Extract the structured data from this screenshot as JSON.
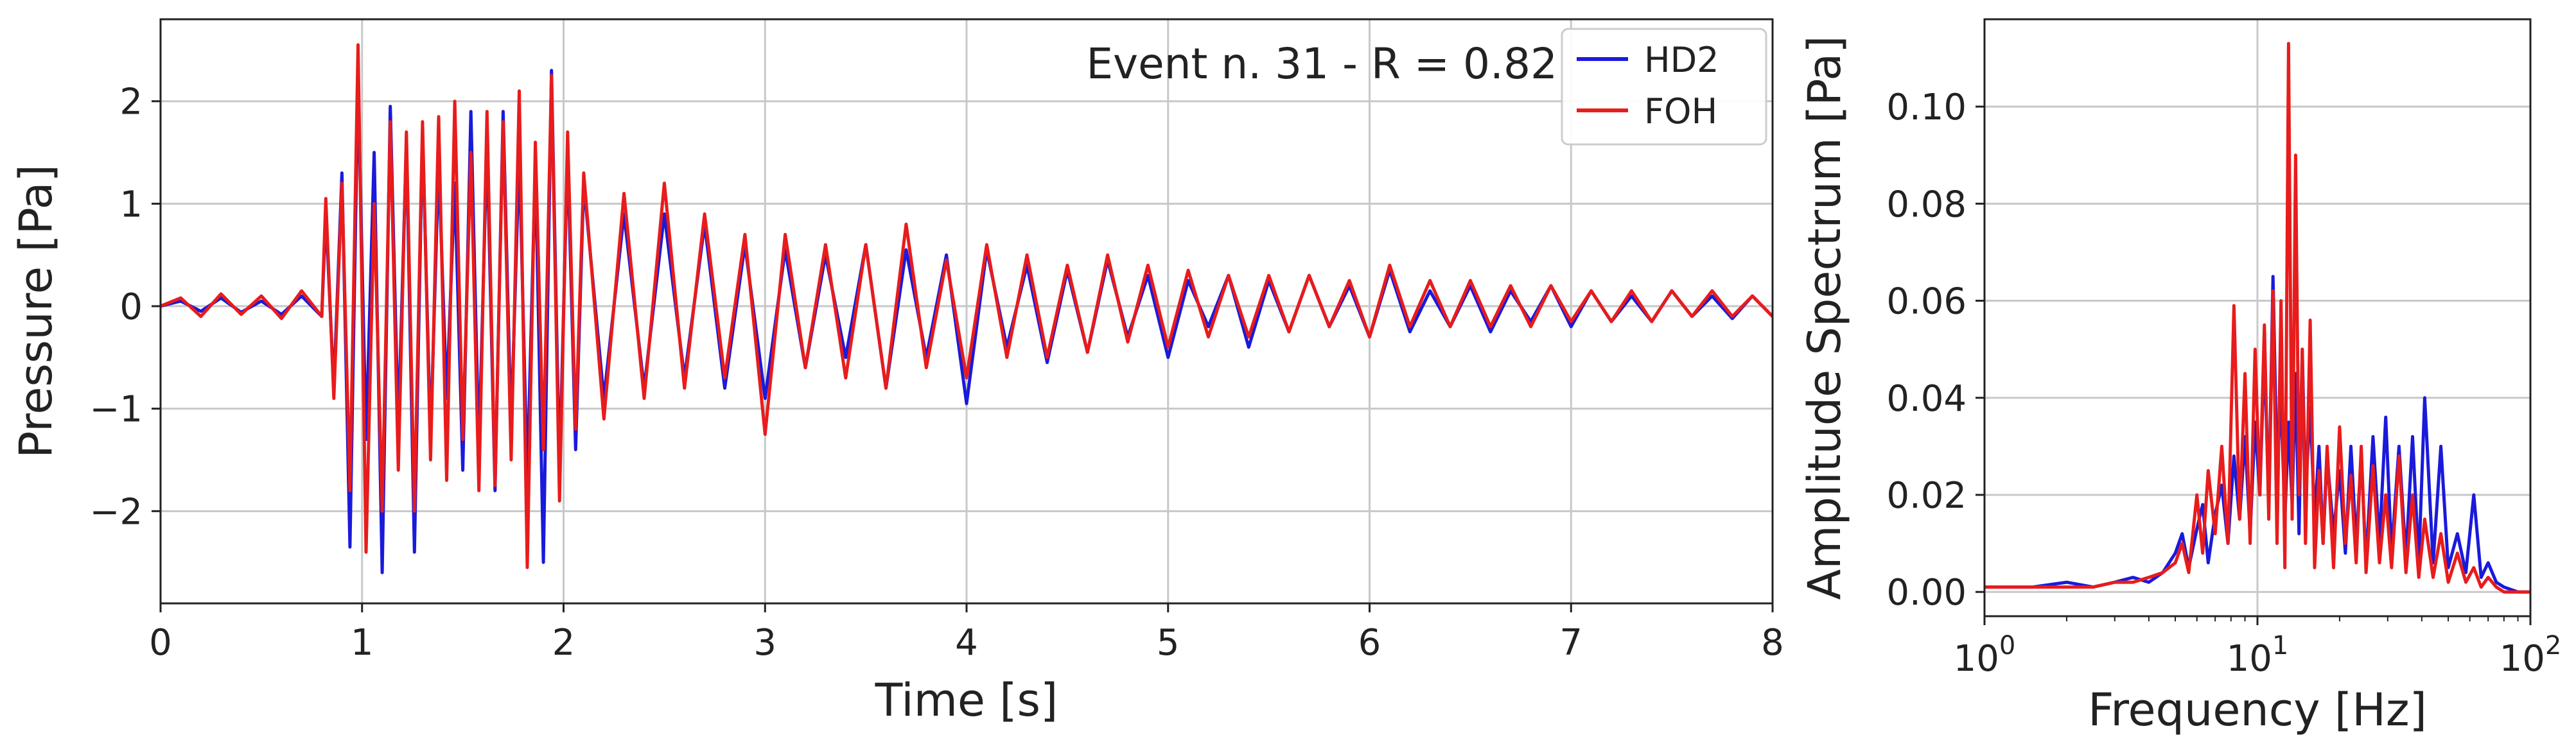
{
  "colors": {
    "HD2": "#1a1adb",
    "FOH": "#e81c1c",
    "grid": "#c8c8c8"
  },
  "chart_data": [
    {
      "type": "line",
      "title": "",
      "annotation": "Event n. 31 - R = 0.82",
      "xlabel": "Time [s]",
      "ylabel": "Pressure [Pa]",
      "xlim": [
        0,
        8
      ],
      "ylim": [
        -2.9,
        2.8
      ],
      "grid": true,
      "legend_position": "top-right",
      "xticks": [
        0,
        1,
        2,
        3,
        4,
        5,
        6,
        7,
        8
      ],
      "xtick_labels": [
        "0",
        "1",
        "2",
        "3",
        "4",
        "5",
        "6",
        "7",
        "8"
      ],
      "yticks": [
        -2,
        -1,
        0,
        1,
        2
      ],
      "ytick_labels": [
        "−2",
        "−1",
        "0",
        "1",
        "2"
      ],
      "series": [
        {
          "name": "HD2",
          "x": [
            0.0,
            0.1,
            0.2,
            0.3,
            0.4,
            0.5,
            0.6,
            0.7,
            0.8,
            0.82,
            0.86,
            0.9,
            0.94,
            0.98,
            1.02,
            1.06,
            1.1,
            1.14,
            1.18,
            1.22,
            1.26,
            1.3,
            1.34,
            1.38,
            1.42,
            1.46,
            1.5,
            1.54,
            1.58,
            1.62,
            1.66,
            1.7,
            1.74,
            1.78,
            1.82,
            1.86,
            1.9,
            1.94,
            1.98,
            2.02,
            2.06,
            2.1,
            2.2,
            2.3,
            2.4,
            2.5,
            2.6,
            2.7,
            2.8,
            2.9,
            3.0,
            3.1,
            3.2,
            3.3,
            3.4,
            3.5,
            3.6,
            3.7,
            3.8,
            3.9,
            4.0,
            4.1,
            4.2,
            4.3,
            4.4,
            4.5,
            4.6,
            4.7,
            4.8,
            4.9,
            5.0,
            5.1,
            5.2,
            5.3,
            5.4,
            5.5,
            5.6,
            5.7,
            5.8,
            5.9,
            6.0,
            6.1,
            6.2,
            6.3,
            6.4,
            6.5,
            6.6,
            6.7,
            6.8,
            6.9,
            7.0,
            7.1,
            7.2,
            7.3,
            7.4,
            7.5,
            7.6,
            7.7,
            7.8,
            7.9,
            8.0
          ],
          "values": [
            0.0,
            0.05,
            -0.05,
            0.08,
            -0.06,
            0.05,
            -0.08,
            0.1,
            -0.1,
            0.9,
            -0.8,
            1.3,
            -2.35,
            2.2,
            -1.3,
            1.5,
            -2.6,
            1.95,
            -1.2,
            1.6,
            -2.4,
            1.7,
            -1.3,
            1.4,
            -0.9,
            1.2,
            -1.6,
            1.9,
            -1.4,
            1.6,
            -1.8,
            1.9,
            -1.2,
            1.5,
            -1.7,
            1.4,
            -2.5,
            2.3,
            -1.6,
            1.5,
            -1.4,
            1.2,
            -0.9,
            0.9,
            -0.8,
            0.9,
            -0.7,
            0.8,
            -0.8,
            0.6,
            -0.9,
            0.55,
            -0.6,
            0.5,
            -0.5,
            0.6,
            -0.8,
            0.55,
            -0.5,
            0.5,
            -0.95,
            0.55,
            -0.4,
            0.4,
            -0.55,
            0.35,
            -0.45,
            0.45,
            -0.3,
            0.3,
            -0.5,
            0.25,
            -0.2,
            0.3,
            -0.4,
            0.25,
            -0.25,
            0.3,
            -0.2,
            0.2,
            -0.3,
            0.35,
            -0.25,
            0.15,
            -0.2,
            0.2,
            -0.25,
            0.15,
            -0.15,
            0.2,
            -0.2,
            0.15,
            -0.15,
            0.1,
            -0.15,
            0.15,
            -0.1,
            0.1,
            -0.12,
            0.1,
            -0.1
          ]
        },
        {
          "name": "FOH",
          "x": [
            0.0,
            0.1,
            0.2,
            0.3,
            0.4,
            0.5,
            0.6,
            0.7,
            0.8,
            0.82,
            0.86,
            0.9,
            0.94,
            0.98,
            1.02,
            1.06,
            1.1,
            1.14,
            1.18,
            1.22,
            1.26,
            1.3,
            1.34,
            1.38,
            1.42,
            1.46,
            1.5,
            1.54,
            1.58,
            1.62,
            1.66,
            1.7,
            1.74,
            1.78,
            1.82,
            1.86,
            1.9,
            1.94,
            1.98,
            2.02,
            2.06,
            2.1,
            2.2,
            2.3,
            2.4,
            2.5,
            2.6,
            2.7,
            2.8,
            2.9,
            3.0,
            3.1,
            3.2,
            3.3,
            3.4,
            3.5,
            3.6,
            3.7,
            3.8,
            3.9,
            4.0,
            4.1,
            4.2,
            4.3,
            4.4,
            4.5,
            4.6,
            4.7,
            4.8,
            4.9,
            5.0,
            5.1,
            5.2,
            5.3,
            5.4,
            5.5,
            5.6,
            5.7,
            5.8,
            5.9,
            6.0,
            6.1,
            6.2,
            6.3,
            6.4,
            6.5,
            6.6,
            6.7,
            6.8,
            6.9,
            7.0,
            7.1,
            7.2,
            7.3,
            7.4,
            7.5,
            7.6,
            7.7,
            7.8,
            7.9,
            8.0
          ],
          "values": [
            0.0,
            0.08,
            -0.1,
            0.12,
            -0.08,
            0.1,
            -0.12,
            0.15,
            -0.1,
            1.05,
            -0.9,
            1.2,
            -1.8,
            2.55,
            -2.4,
            1.0,
            -2.0,
            1.8,
            -1.6,
            1.7,
            -2.0,
            1.8,
            -1.5,
            1.85,
            -1.7,
            2.0,
            -1.3,
            1.5,
            -1.8,
            1.9,
            -1.75,
            1.8,
            -1.5,
            2.1,
            -2.55,
            1.6,
            -1.4,
            2.25,
            -1.9,
            1.7,
            -1.2,
            1.3,
            -1.1,
            1.1,
            -0.9,
            1.2,
            -0.8,
            0.9,
            -0.7,
            0.7,
            -1.25,
            0.7,
            -0.6,
            0.6,
            -0.7,
            0.6,
            -0.8,
            0.8,
            -0.6,
            0.45,
            -0.7,
            0.6,
            -0.5,
            0.5,
            -0.5,
            0.4,
            -0.45,
            0.5,
            -0.35,
            0.4,
            -0.4,
            0.35,
            -0.3,
            0.3,
            -0.3,
            0.3,
            -0.25,
            0.3,
            -0.2,
            0.25,
            -0.3,
            0.4,
            -0.2,
            0.25,
            -0.2,
            0.25,
            -0.2,
            0.2,
            -0.2,
            0.2,
            -0.15,
            0.15,
            -0.15,
            0.15,
            -0.15,
            0.15,
            -0.1,
            0.15,
            -0.1,
            0.1,
            -0.1
          ]
        }
      ]
    },
    {
      "type": "line",
      "title": "",
      "xlabel": "Frequency [Hz]",
      "ylabel": "Amplitude Spectrum [Pa]",
      "xscale": "log",
      "xlim": [
        1,
        100
      ],
      "ylim": [
        -0.005,
        0.118
      ],
      "grid": true,
      "xticks": [
        1,
        10,
        100
      ],
      "xtick_base": [
        "10",
        "10",
        "10"
      ],
      "xtick_exp": [
        "0",
        "1",
        "2"
      ],
      "yticks": [
        0.0,
        0.02,
        0.04,
        0.06,
        0.08,
        0.1
      ],
      "ytick_labels": [
        "0.00",
        "0.02",
        "0.04",
        "0.06",
        "0.08",
        "0.10"
      ],
      "series": [
        {
          "name": "HD2",
          "x": [
            1.0,
            1.5,
            2.0,
            2.5,
            3.0,
            3.5,
            4.0,
            4.5,
            5.0,
            5.3,
            5.6,
            6.0,
            6.3,
            6.6,
            7.0,
            7.4,
            7.8,
            8.2,
            8.6,
            9.0,
            9.4,
            9.8,
            10.2,
            10.6,
            11.0,
            11.4,
            11.8,
            12.2,
            12.6,
            13.0,
            13.4,
            13.8,
            14.2,
            14.6,
            15.0,
            15.6,
            16.2,
            16.8,
            17.4,
            18.0,
            19.0,
            20.0,
            21.0,
            22.0,
            23.0,
            24.0,
            25.0,
            26.5,
            28.0,
            29.5,
            31.0,
            33.0,
            35.0,
            37.0,
            39.0,
            41.0,
            44.0,
            47.0,
            50.0,
            54.0,
            58.0,
            62.0,
            66.0,
            70.0,
            75.0,
            80.0,
            90.0,
            100.0
          ],
          "values": [
            0.001,
            0.001,
            0.002,
            0.001,
            0.002,
            0.003,
            0.002,
            0.004,
            0.008,
            0.012,
            0.005,
            0.013,
            0.018,
            0.006,
            0.016,
            0.022,
            0.01,
            0.028,
            0.015,
            0.032,
            0.012,
            0.035,
            0.02,
            0.05,
            0.018,
            0.065,
            0.025,
            0.04,
            0.015,
            0.035,
            0.018,
            0.045,
            0.012,
            0.05,
            0.02,
            0.038,
            0.015,
            0.03,
            0.01,
            0.028,
            0.012,
            0.025,
            0.008,
            0.03,
            0.01,
            0.028,
            0.006,
            0.032,
            0.01,
            0.036,
            0.008,
            0.03,
            0.007,
            0.032,
            0.006,
            0.04,
            0.006,
            0.03,
            0.005,
            0.012,
            0.004,
            0.02,
            0.003,
            0.006,
            0.002,
            0.001,
            0.0,
            0.0
          ]
        },
        {
          "name": "FOH",
          "x": [
            1.0,
            1.5,
            2.0,
            2.5,
            3.0,
            3.5,
            4.0,
            4.5,
            5.0,
            5.3,
            5.6,
            6.0,
            6.3,
            6.6,
            7.0,
            7.4,
            7.8,
            8.2,
            8.6,
            9.0,
            9.4,
            9.8,
            10.2,
            10.6,
            11.0,
            11.4,
            11.8,
            12.2,
            12.6,
            13.0,
            13.4,
            13.8,
            14.2,
            14.6,
            15.0,
            15.6,
            16.2,
            16.8,
            17.4,
            18.0,
            19.0,
            20.0,
            21.0,
            22.0,
            23.0,
            24.0,
            25.0,
            26.5,
            28.0,
            29.5,
            31.0,
            33.0,
            35.0,
            37.0,
            39.0,
            41.0,
            44.0,
            47.0,
            50.0,
            54.0,
            58.0,
            62.0,
            66.0,
            70.0,
            75.0,
            80.0,
            90.0,
            100.0
          ],
          "values": [
            0.001,
            0.001,
            0.001,
            0.001,
            0.002,
            0.002,
            0.003,
            0.004,
            0.006,
            0.01,
            0.004,
            0.02,
            0.008,
            0.025,
            0.012,
            0.03,
            0.01,
            0.059,
            0.015,
            0.045,
            0.01,
            0.05,
            0.02,
            0.055,
            0.015,
            0.062,
            0.01,
            0.06,
            0.005,
            0.113,
            0.015,
            0.09,
            0.02,
            0.05,
            0.01,
            0.056,
            0.005,
            0.025,
            0.01,
            0.03,
            0.005,
            0.034,
            0.01,
            0.024,
            0.006,
            0.03,
            0.004,
            0.026,
            0.006,
            0.02,
            0.005,
            0.028,
            0.004,
            0.02,
            0.003,
            0.015,
            0.003,
            0.012,
            0.002,
            0.008,
            0.002,
            0.005,
            0.001,
            0.003,
            0.001,
            0.0,
            0.0,
            0.0
          ]
        }
      ]
    }
  ]
}
